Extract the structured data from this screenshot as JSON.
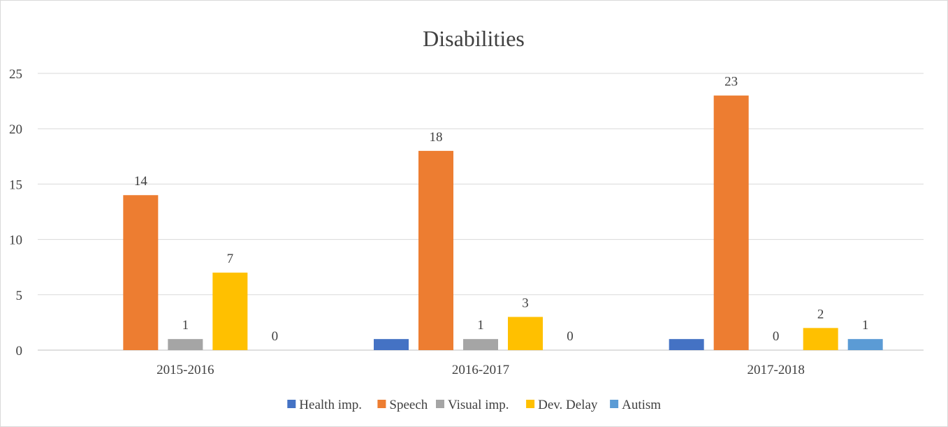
{
  "chart_data": {
    "type": "bar",
    "title": "Disabilities",
    "xlabel": "",
    "ylabel": "",
    "ylim": [
      0,
      25
    ],
    "yticks": [
      0,
      5,
      10,
      15,
      20,
      25
    ],
    "grid": true,
    "legend_position": "bottom",
    "categories": [
      "2015-2016",
      "2016-2017",
      "2017-2018"
    ],
    "series": [
      {
        "name": "Health imp.",
        "color": "#4472c4",
        "values": [
          null,
          1,
          1
        ],
        "labels": [
          null,
          null,
          null
        ]
      },
      {
        "name": "Speech",
        "color": "#ed7d31",
        "values": [
          14,
          18,
          23
        ],
        "labels": [
          "14",
          "18",
          "23"
        ]
      },
      {
        "name": "Visual imp.",
        "color": "#a5a5a5",
        "values": [
          1,
          1,
          0
        ],
        "labels": [
          "1",
          "1",
          "0"
        ]
      },
      {
        "name": "Dev. Delay",
        "color": "#ffc000",
        "values": [
          7,
          3,
          2
        ],
        "labels": [
          "7",
          "3",
          "2"
        ]
      },
      {
        "name": "Autism",
        "color": "#5b9bd5",
        "values": [
          0,
          0,
          1
        ],
        "labels": [
          "0",
          "0",
          "1"
        ]
      }
    ]
  }
}
